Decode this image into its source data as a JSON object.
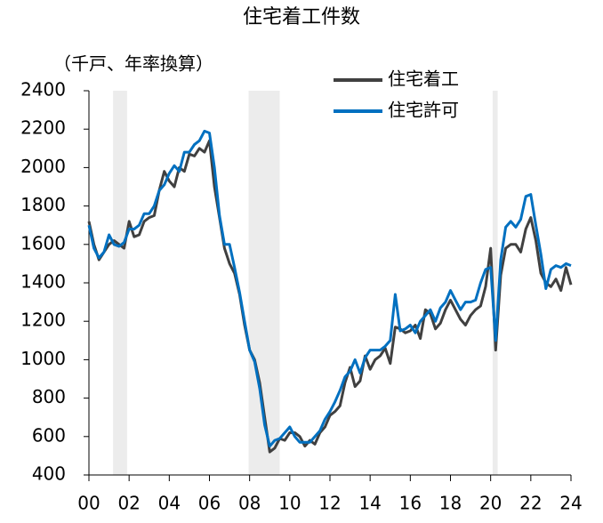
{
  "chart_data": {
    "type": "line",
    "title": "住宅着工件数",
    "y_label": "（千戸、年率換算）",
    "x": [
      2000,
      2000.25,
      2000.5,
      2000.75,
      2001,
      2001.25,
      2001.5,
      2001.75,
      2002,
      2002.25,
      2002.5,
      2002.75,
      2003,
      2003.25,
      2003.5,
      2003.75,
      2004,
      2004.25,
      2004.5,
      2004.75,
      2005,
      2005.25,
      2005.5,
      2005.75,
      2006,
      2006.25,
      2006.5,
      2006.75,
      2007,
      2007.25,
      2007.5,
      2007.75,
      2008,
      2008.25,
      2008.5,
      2008.75,
      2009,
      2009.25,
      2009.5,
      2009.75,
      2010,
      2010.25,
      2010.5,
      2010.75,
      2011,
      2011.25,
      2011.5,
      2011.75,
      2012,
      2012.25,
      2012.5,
      2012.75,
      2013,
      2013.25,
      2013.5,
      2013.75,
      2014,
      2014.25,
      2014.5,
      2014.75,
      2015,
      2015.25,
      2015.5,
      2015.75,
      2016,
      2016.25,
      2016.5,
      2016.75,
      2017,
      2017.25,
      2017.5,
      2017.75,
      2018,
      2018.25,
      2018.5,
      2018.75,
      2019,
      2019.25,
      2019.5,
      2019.75,
      2020,
      2020.25,
      2020.5,
      2020.75,
      2021,
      2021.25,
      2021.5,
      2021.75,
      2022,
      2022.25,
      2022.5,
      2022.75,
      2023,
      2023.25,
      2023.5,
      2023.75,
      2024
    ],
    "series": [
      {
        "name": "住宅着工",
        "color": "#404040",
        "values": [
          1720,
          1600,
          1520,
          1560,
          1600,
          1620,
          1600,
          1580,
          1720,
          1640,
          1650,
          1720,
          1740,
          1750,
          1880,
          1980,
          1930,
          1900,
          2000,
          1980,
          2070,
          2060,
          2100,
          2080,
          2140,
          1900,
          1740,
          1580,
          1500,
          1450,
          1340,
          1180,
          1050,
          1000,
          880,
          700,
          520,
          540,
          590,
          580,
          620,
          620,
          600,
          550,
          580,
          560,
          620,
          650,
          710,
          730,
          760,
          880,
          960,
          860,
          890,
          1020,
          950,
          1000,
          1020,
          1060,
          980,
          1170,
          1160,
          1140,
          1150,
          1180,
          1110,
          1260,
          1240,
          1160,
          1190,
          1260,
          1310,
          1260,
          1210,
          1180,
          1230,
          1260,
          1280,
          1380,
          1580,
          1050,
          1440,
          1580,
          1600,
          1600,
          1560,
          1680,
          1740,
          1620,
          1450,
          1400,
          1380,
          1420,
          1360,
          1480,
          1390
        ]
      },
      {
        "name": "住宅許可",
        "color": "#0070c0",
        "values": [
          1700,
          1580,
          1530,
          1560,
          1650,
          1600,
          1590,
          1610,
          1680,
          1680,
          1700,
          1760,
          1760,
          1800,
          1880,
          1910,
          1970,
          2010,
          1980,
          2080,
          2080,
          2120,
          2140,
          2190,
          2180,
          2000,
          1750,
          1600,
          1600,
          1480,
          1350,
          1200,
          1050,
          990,
          850,
          660,
          550,
          580,
          590,
          620,
          650,
          600,
          570,
          570,
          570,
          600,
          630,
          690,
          730,
          780,
          840,
          910,
          940,
          1000,
          930,
          1010,
          1050,
          1050,
          1050,
          1070,
          1100,
          1340,
          1150,
          1160,
          1180,
          1140,
          1200,
          1230,
          1260,
          1200,
          1270,
          1300,
          1360,
          1310,
          1260,
          1300,
          1300,
          1310,
          1400,
          1470,
          1480,
          1100,
          1520,
          1690,
          1720,
          1690,
          1730,
          1850,
          1860,
          1700,
          1550,
          1370,
          1470,
          1490,
          1480,
          1500,
          1490
        ]
      }
    ],
    "shaded_periods": [
      [
        2001.2,
        2001.9
      ],
      [
        2007.95,
        2009.5
      ],
      [
        2020.1,
        2020.35
      ]
    ],
    "shade_color": "#ececec",
    "xlim": [
      2000,
      2024
    ],
    "xticks": [
      {
        "value": 2000,
        "label": "00"
      },
      {
        "value": 2002,
        "label": "02"
      },
      {
        "value": 2004,
        "label": "04"
      },
      {
        "value": 2006,
        "label": "06"
      },
      {
        "value": 2008,
        "label": "08"
      },
      {
        "value": 2010,
        "label": "10"
      },
      {
        "value": 2012,
        "label": "12"
      },
      {
        "value": 2014,
        "label": "14"
      },
      {
        "value": 2016,
        "label": "16"
      },
      {
        "value": 2018,
        "label": "18"
      },
      {
        "value": 2020,
        "label": "20"
      },
      {
        "value": 2022,
        "label": "22"
      },
      {
        "value": 2024,
        "label": "24"
      }
    ],
    "ylim": [
      400,
      2400
    ],
    "yticks": [
      400,
      600,
      800,
      1000,
      1200,
      1400,
      1600,
      1800,
      2000,
      2200,
      2400
    ],
    "grid": false
  }
}
